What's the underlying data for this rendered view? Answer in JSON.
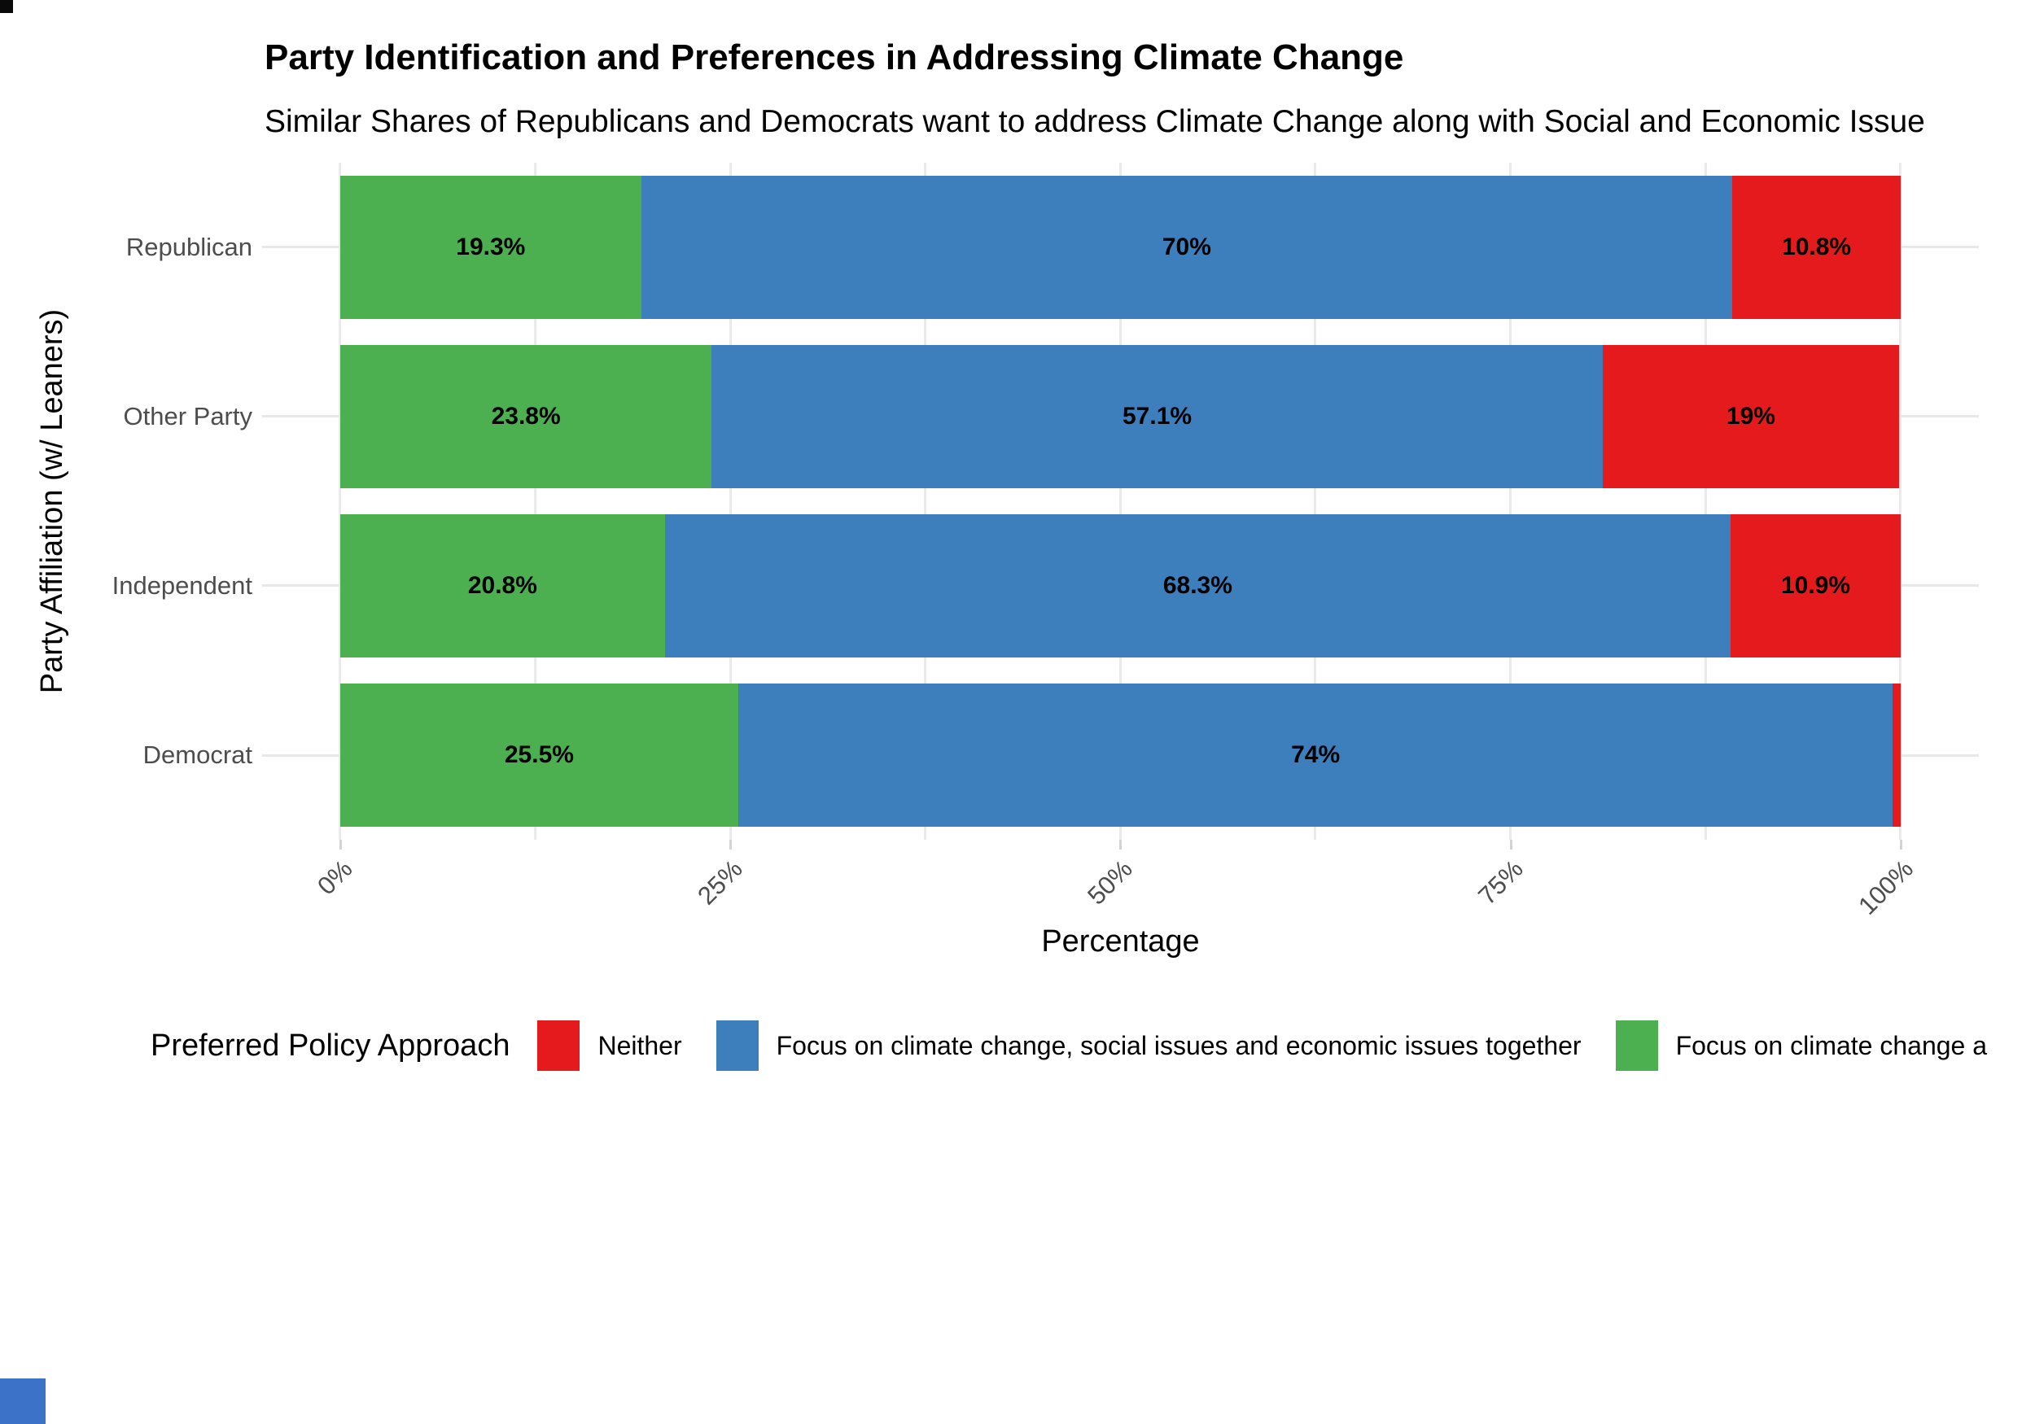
{
  "figure": {
    "title": "Party Identification and Preferences in Addressing Climate Change",
    "subtitle": "Similar Shares of Republicans and Democrats want to address Climate Change along with Social and Economic Issue",
    "x_axis_title": "Percentage",
    "y_axis_title": "Party Affiliation (w/ Leaners)"
  },
  "legend": {
    "title": "Preferred Policy Approach",
    "items": [
      {
        "label": "Neither",
        "color": "#e41a1c"
      },
      {
        "label": "Focus on climate change, social issues and economic issues together",
        "color": "#3d7ebd"
      },
      {
        "label": "Focus on climate change a",
        "color": "#4caf50"
      }
    ]
  },
  "chart_data": {
    "type": "bar",
    "orientation": "horizontal",
    "stacked": true,
    "title": "Party Identification and Preferences in Addressing Climate Change",
    "subtitle": "Similar Shares of Republicans and Democrats want to address Climate Change along with Social and Economic Issue",
    "xlabel": "Percentage",
    "ylabel": "Party Affiliation (w/ Leaners)",
    "xlim": [
      0,
      100
    ],
    "x_tick_labels": [
      "0%",
      "25%",
      "50%",
      "75%",
      "100%"
    ],
    "grid": true,
    "gridlines": "vertical every 12.5%, horizontal at category centers, light gray",
    "legend_position": "bottom",
    "categories": [
      "Republican",
      "Other Party",
      "Independent",
      "Democrat"
    ],
    "series": [
      {
        "name": "Focus on climate change a",
        "color": "#4caf50",
        "values": [
          19.3,
          23.8,
          20.8,
          25.5
        ],
        "labels": [
          "19.3%",
          "23.8%",
          "20.8%",
          "25.5%"
        ]
      },
      {
        "name": "Focus on climate change, social issues and economic issues together",
        "color": "#3d7ebd",
        "values": [
          70,
          57.1,
          68.3,
          74
        ],
        "labels": [
          "70%",
          "57.1%",
          "68.3%",
          "74%"
        ]
      },
      {
        "name": "Neither",
        "color": "#e41a1c",
        "values": [
          10.8,
          19,
          10.9,
          0.5
        ],
        "labels": [
          "10.8%",
          "19%",
          "10.9%",
          ""
        ]
      }
    ],
    "colors": {
      "green": "#4caf50",
      "blue": "#3d7ebd",
      "red": "#e41a1c"
    }
  }
}
